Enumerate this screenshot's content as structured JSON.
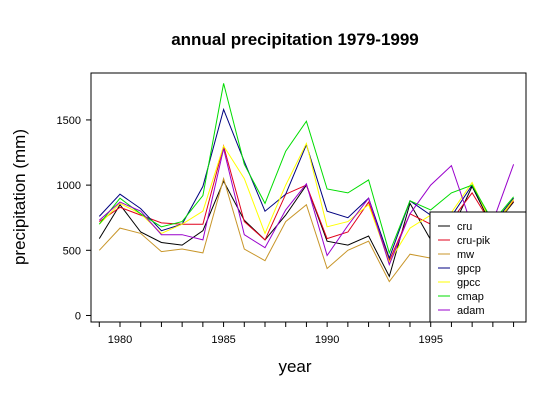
{
  "chart_data": {
    "type": "line",
    "title": "annual precipitation 1979-1999",
    "xlabel": "year",
    "ylabel": "precipitation (mm)",
    "x": [
      1979,
      1980,
      1981,
      1982,
      1983,
      1984,
      1985,
      1986,
      1987,
      1988,
      1989,
      1990,
      1991,
      1992,
      1993,
      1994,
      1995,
      1996,
      1997,
      1998,
      1999
    ],
    "xlim": [
      1978.6,
      1999.6
    ],
    "ylim": [
      -50,
      1860
    ],
    "x_ticks": [
      1980,
      1985,
      1990,
      1995
    ],
    "y_ticks": [
      0,
      500,
      1000,
      1500
    ],
    "grid": false,
    "legend_position": "bottom-right",
    "series": [
      {
        "name": "cru",
        "color": "#000000",
        "values": [
          590,
          850,
          640,
          560,
          540,
          650,
          1030,
          730,
          580,
          770,
          1000,
          570,
          540,
          610,
          300,
          860,
          580,
          650,
          990,
          670,
          870
        ]
      },
      {
        "name": "cru-pik",
        "color": "#e0001b",
        "values": [
          720,
          830,
          770,
          710,
          700,
          700,
          1300,
          720,
          580,
          930,
          1000,
          590,
          640,
          870,
          420,
          780,
          700,
          730,
          940,
          680,
          880
        ]
      },
      {
        "name": "mw",
        "color": "#c8962a",
        "values": [
          500,
          670,
          630,
          490,
          510,
          480,
          1050,
          510,
          420,
          720,
          850,
          360,
          500,
          570,
          260,
          470,
          440,
          550,
          730,
          650,
          890
        ]
      },
      {
        "name": "gpcp",
        "color": "#000080",
        "values": [
          760,
          930,
          820,
          650,
          700,
          990,
          1580,
          1180,
          800,
          930,
          1310,
          800,
          750,
          900,
          440,
          880,
          770,
          760,
          1000,
          700,
          900
        ]
      },
      {
        "name": "gpcc",
        "color": "#ffff00",
        "values": [
          700,
          860,
          780,
          630,
          700,
          800,
          1300,
          1050,
          630,
          1000,
          1320,
          680,
          720,
          850,
          410,
          670,
          770,
          790,
          1020,
          680,
          890
        ]
      },
      {
        "name": "cmap",
        "color": "#00dd00",
        "values": [
          700,
          900,
          780,
          680,
          720,
          920,
          1780,
          1160,
          860,
          1260,
          1490,
          970,
          940,
          1040,
          480,
          880,
          810,
          940,
          1000,
          720,
          910
        ]
      },
      {
        "name": "adam",
        "color": "#9900cc",
        "values": [
          730,
          870,
          800,
          620,
          620,
          580,
          1280,
          620,
          520,
          810,
          1010,
          460,
          690,
          900,
          390,
          780,
          1000,
          1150,
          680,
          720,
          1160
        ]
      }
    ]
  }
}
